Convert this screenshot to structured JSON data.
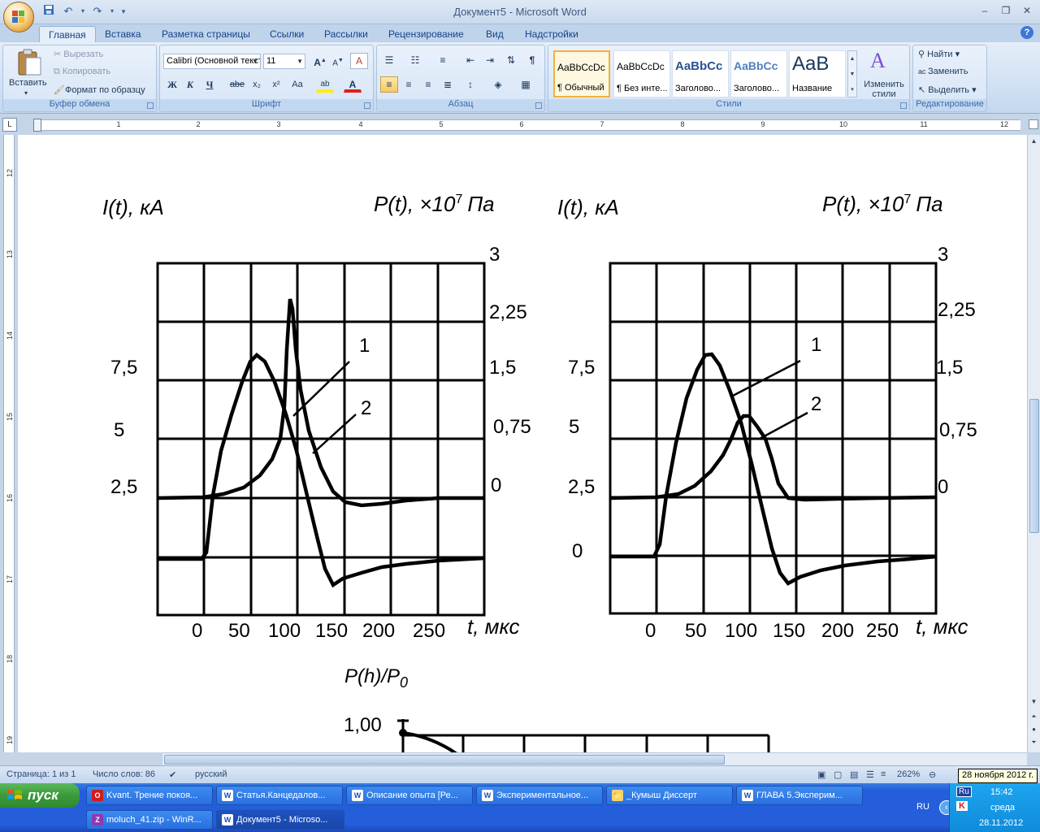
{
  "window": {
    "title": "Документ5 - Microsoft Word",
    "controls": [
      "‒",
      "❐",
      "✕"
    ]
  },
  "quick_access": {
    "save": "💾",
    "undo": "↶",
    "redo": "↷"
  },
  "tabs": [
    "Главная",
    "Вставка",
    "Разметка страницы",
    "Ссылки",
    "Рассылки",
    "Рецензирование",
    "Вид",
    "Надстройки"
  ],
  "help": "?",
  "ribbon": {
    "clipboard": {
      "paste": "Вставить",
      "cut": "Вырезать",
      "copy": "Копировать",
      "format_painter": "Формат по образцу",
      "label": "Буфер обмена"
    },
    "font": {
      "family": "Calibri (Основной текст)",
      "size": "11",
      "label": "Шрифт",
      "bold": "Ж",
      "italic": "К",
      "underline": "Ч",
      "strike": "abe",
      "subscript": "x₂",
      "superscript": "x²",
      "case": "Aa",
      "grow": "A",
      "shrink": "A",
      "clear": "A",
      "font_color": "A",
      "highlight": "ab"
    },
    "paragraph": {
      "label": "Абзац"
    },
    "styles": {
      "label": "Стили",
      "items": [
        {
          "sample": "AaBbCcDc",
          "name": "¶ Обычный"
        },
        {
          "sample": "AaBbCcDc",
          "name": "¶ Без инте..."
        },
        {
          "sample": "AaBbCc",
          "name": "Заголово..."
        },
        {
          "sample": "AaBbCc",
          "name": "Заголово..."
        },
        {
          "sample": "AaB",
          "name": "Название"
        }
      ],
      "change": "Изменить стили"
    },
    "editing": {
      "find": "Найти",
      "replace": "Заменить",
      "select": "Выделить",
      "label": "Редактирование"
    }
  },
  "ruler": {
    "marks": [
      "1",
      "1",
      "2",
      "3",
      "4",
      "5",
      "6",
      "7",
      "8",
      "9",
      "10",
      "11",
      "12"
    ],
    "tab_selector": "L"
  },
  "vruler": {
    "marks": [
      "12",
      "13",
      "14",
      "15",
      "16",
      "17",
      "18",
      "19"
    ]
  },
  "document": {
    "chart_left": {
      "ylabel_left": "I(t), кА",
      "ylabel_right": "P(t), ×10",
      "ylabel_right_exp": "7",
      "ylabel_right_unit": "Па",
      "left_ticks": [
        "7,5",
        "5",
        "2,5"
      ],
      "right_ticks": [
        "3",
        "2,25",
        "1,5",
        "0,75",
        "0"
      ],
      "x_ticks": [
        "0",
        "50",
        "100",
        "150",
        "200",
        "250"
      ],
      "xlabel": "t, мкс",
      "curve_labels": [
        "1",
        "2"
      ]
    },
    "chart_right": {
      "ylabel_left": "I(t), кА",
      "ylabel_right": "P(t), ×10",
      "ylabel_right_exp": "7",
      "ylabel_right_unit": "Па",
      "left_ticks": [
        "7,5",
        "5",
        "2,5",
        "0"
      ],
      "right_ticks": [
        "3",
        "2,25",
        "1,5",
        "0,75",
        "0"
      ],
      "x_ticks": [
        "0",
        "50",
        "100",
        "150",
        "200",
        "250"
      ],
      "xlabel": "t, мкс",
      "curve_labels": [
        "1",
        "2"
      ]
    },
    "chart_bottom": {
      "ylabel": "P(h)/P",
      "ylabel_sub": "0",
      "tick": "1,00"
    }
  },
  "statusbar": {
    "page": "Страница: 1 из 1",
    "words": "Число слов: 86",
    "language": "русский",
    "zoom": "262%"
  },
  "tooltip": "28 ноября 2012 г.",
  "taskbar": {
    "start": "пуск",
    "tasks_row1": [
      {
        "icon": "O",
        "label": "Kvant. Трение покоя..."
      },
      {
        "icon": "W",
        "label": "Статья.Канцедалов..."
      },
      {
        "icon": "W",
        "label": "Описание опыта [Ре..."
      },
      {
        "icon": "W",
        "label": "Экспериментальное..."
      },
      {
        "icon": "📁",
        "label": "_Кумыш Диссерт"
      },
      {
        "icon": "W",
        "label": "ГЛАВА 5.Эксперим..."
      }
    ],
    "tasks_row2": [
      {
        "icon": "Z",
        "label": "moluch_41.zip - WinR..."
      },
      {
        "icon": "W",
        "label": "Документ5 - Microso..."
      }
    ],
    "lang": "RU",
    "tray_lang": "Ru",
    "time": "15:42",
    "day": "среда",
    "date": "28.11.2012"
  }
}
